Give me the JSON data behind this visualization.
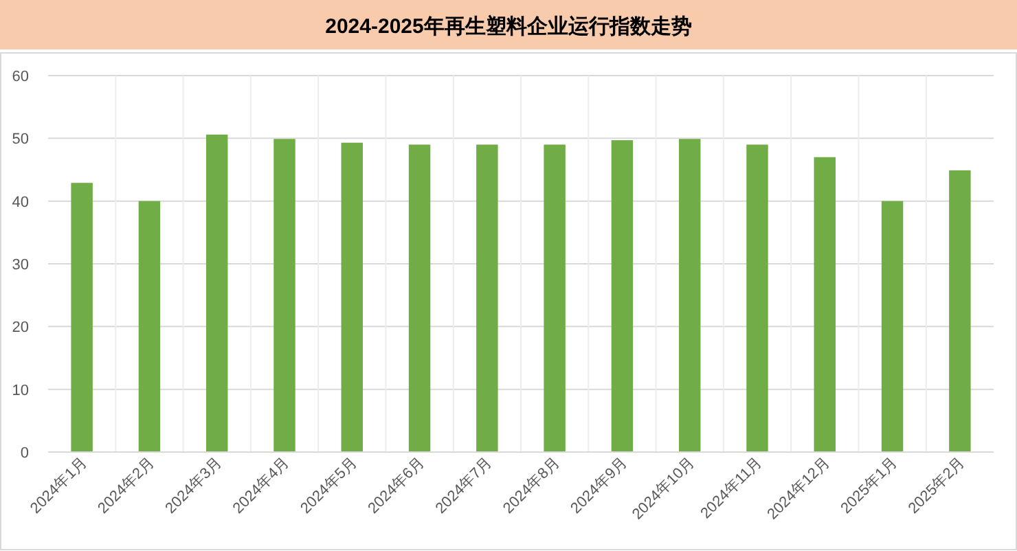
{
  "chart_data": {
    "type": "bar",
    "title": "2024-2025年再生塑料企业运行指数走势",
    "categories": [
      "2024年1月",
      "2024年2月",
      "2024年3月",
      "2024年4月",
      "2024年5月",
      "2024年6月",
      "2024年7月",
      "2024年8月",
      "2024年9月",
      "2024年10月",
      "2024年11月",
      "2024年12月",
      "2025年1月",
      "2025年2月"
    ],
    "series": [
      {
        "color": "#70ad47",
        "values": [
          42.9,
          40,
          50.6,
          49.9,
          49.3,
          49,
          49,
          49,
          49.7,
          49.9,
          49,
          47,
          40,
          44.9
        ]
      }
    ],
    "ylim": [
      0,
      60
    ],
    "yticks": [
      0,
      10,
      20,
      30,
      40,
      50,
      60
    ],
    "grid": true
  }
}
